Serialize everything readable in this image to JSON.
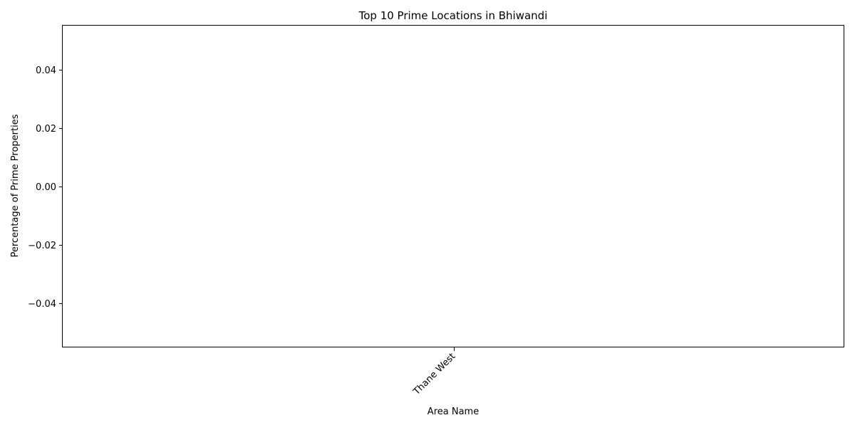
{
  "chart_data": {
    "type": "bar",
    "title": "Top 10 Prime Locations in Bhiwandi",
    "xlabel": "Area Name",
    "ylabel": "Percentage of Prime Properties",
    "categories": [
      "Thane West"
    ],
    "values": [
      0
    ],
    "ylim": [
      -0.055,
      0.055
    ],
    "yticks": [
      0.04,
      0.02,
      0.0,
      -0.02,
      -0.04
    ],
    "ytick_labels": [
      "0.04",
      "0.02",
      "0.00",
      "−0.02",
      "−0.04"
    ],
    "grid": false,
    "legend": "none",
    "bar_color": "#1f77b4"
  }
}
